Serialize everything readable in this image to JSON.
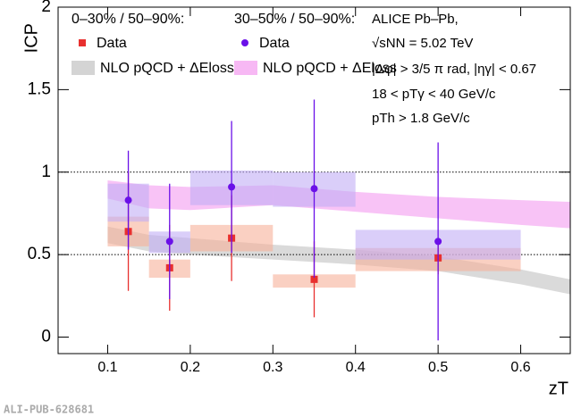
{
  "chart_data": {
    "type": "scatter",
    "xlabel": "zT",
    "ylabel": "ICP",
    "xlim": [
      0.04,
      0.66
    ],
    "ylim": [
      -0.1,
      2
    ],
    "xticks": [
      0.1,
      0.2,
      0.3,
      0.4,
      0.5,
      0.6
    ],
    "yticks": [
      0,
      0.5,
      1,
      1.5,
      2
    ],
    "reference_lines": [
      0.5,
      1
    ],
    "header": [
      "ALICE Pb–Pb,",
      "√sNN = 5.02 TeV",
      "|Δφ| > 3/5 π rad, |ηγ| < 0.67",
      "18 < pTγ < 40 GeV/c",
      "pTh > 1.8 GeV/c"
    ],
    "watermark": "ALI-PUB-628681",
    "bands": [
      {
        "name": "NLO pQCD + ΔEloss",
        "color": "#d4d4d4",
        "x": [
          0.1,
          0.15,
          0.2,
          0.3,
          0.4,
          0.5,
          0.6,
          0.66
        ],
        "low": [
          0.57,
          0.52,
          0.5,
          0.47,
          0.44,
          0.4,
          0.32,
          0.26
        ],
        "high": [
          0.67,
          0.62,
          0.6,
          0.56,
          0.53,
          0.49,
          0.41,
          0.35
        ]
      },
      {
        "name": "NLO pQCD + ΔEloss",
        "color": "#f7b8f4",
        "x": [
          0.1,
          0.15,
          0.2,
          0.3,
          0.4,
          0.5,
          0.6,
          0.66
        ],
        "low": [
          0.84,
          0.78,
          0.77,
          0.8,
          0.76,
          0.72,
          0.68,
          0.66
        ],
        "high": [
          0.95,
          0.92,
          0.91,
          0.92,
          0.88,
          0.85,
          0.83,
          0.82
        ]
      }
    ],
    "series": [
      {
        "group": "0–30%  / 50–90%:",
        "name": "Data",
        "color": "#e8302f",
        "box_color": "#f6b09a",
        "marker": "square",
        "x": [
          0.125,
          0.175,
          0.25,
          0.35,
          0.5
        ],
        "values": [
          0.64,
          0.42,
          0.6,
          0.35,
          0.48
        ],
        "errors": [
          0.36,
          0.26,
          0.26,
          0.23,
          0.1
        ],
        "bin_low": [
          0.1,
          0.15,
          0.2,
          0.3,
          0.4
        ],
        "bin_high": [
          0.15,
          0.2,
          0.3,
          0.4,
          0.6
        ],
        "box_low": [
          0.55,
          0.36,
          0.52,
          0.3,
          0.4
        ],
        "box_high": [
          0.73,
          0.47,
          0.68,
          0.38,
          0.54
        ]
      },
      {
        "group": "30–50%  / 50–90%:",
        "name": "Data",
        "color": "#6a10e8",
        "box_color": "#c2aef5",
        "marker": "circle",
        "x": [
          0.125,
          0.175,
          0.25,
          0.35,
          0.5
        ],
        "values": [
          0.83,
          0.58,
          0.91,
          0.9,
          0.58
        ],
        "errors": [
          0.3,
          0.35,
          0.4,
          0.54,
          0.6
        ],
        "bin_low": [
          0.1,
          0.15,
          0.2,
          0.3,
          0.4
        ],
        "bin_high": [
          0.15,
          0.2,
          0.3,
          0.4,
          0.6
        ],
        "box_low": [
          0.7,
          0.51,
          0.8,
          0.79,
          0.47
        ],
        "box_high": [
          0.93,
          0.64,
          1.01,
          1.0,
          0.65
        ]
      }
    ]
  }
}
